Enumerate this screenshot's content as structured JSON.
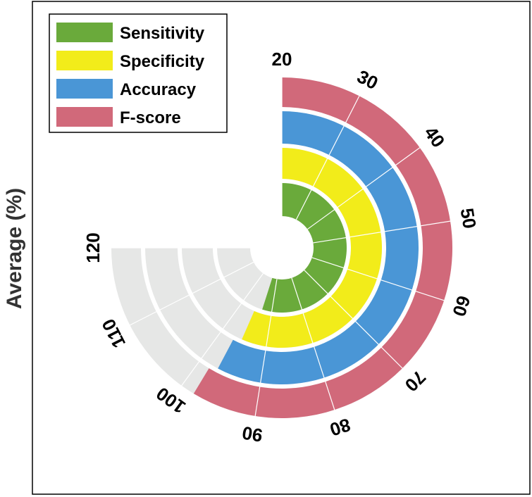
{
  "chart_data": {
    "type": "radial_bar",
    "ylabel": "Average (%)",
    "angular_axis": {
      "ticks": [
        "20",
        "30",
        "40",
        "50",
        "60",
        "70",
        "80",
        "90",
        "100",
        "110",
        "120"
      ],
      "range": [
        20,
        120
      ]
    },
    "series": [
      {
        "name": "Sensitivity",
        "value": 93.2,
        "color": "#6aaa3b"
      },
      {
        "name": "Specificity",
        "value": 95.4,
        "color": "#f2ec1a"
      },
      {
        "name": "Accuracy",
        "value": 97.0,
        "color": "#4a96d6"
      },
      {
        "name": "F-score",
        "value": 98.2,
        "color": "#d1697a"
      }
    ],
    "background_track_color": "#e6e7e6",
    "grid": true,
    "legend": "top-left"
  }
}
